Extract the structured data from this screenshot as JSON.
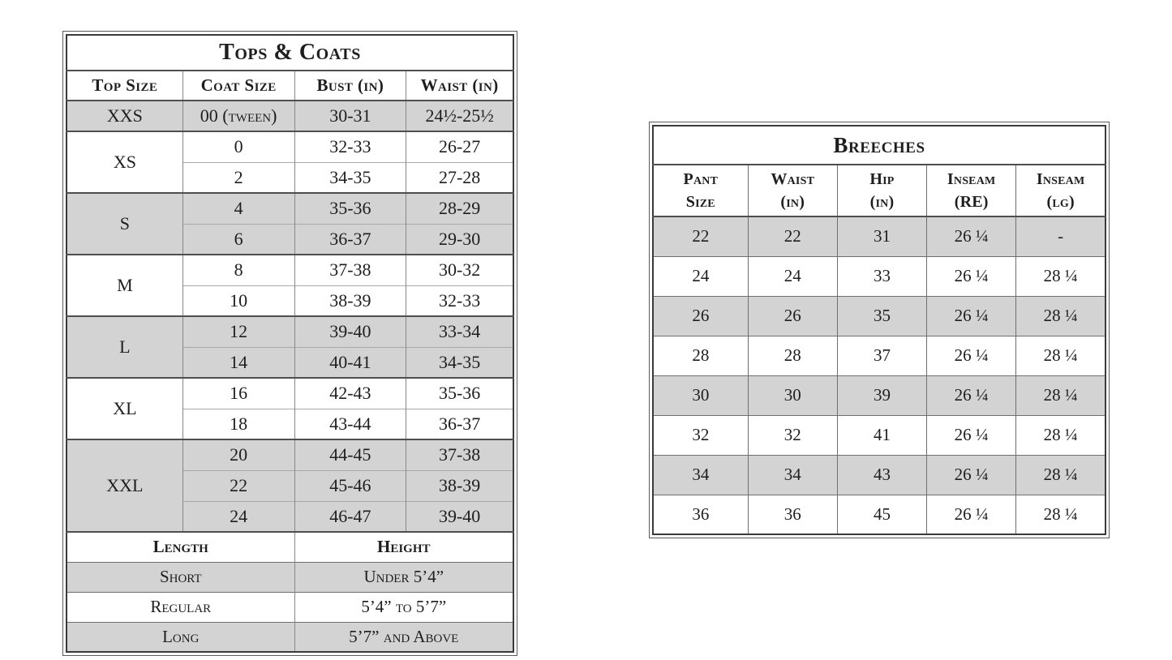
{
  "colors": {
    "shaded_row": "#d3d3d3",
    "frame_inner": "#3a3a3a",
    "line_dark": "#4e4e4e",
    "text": "#1e1e1e"
  },
  "tops_coats": {
    "title": "Tops & Coats",
    "headers": [
      "Top Size",
      "Coat Size",
      "Bust (in)",
      "Waist (in)"
    ],
    "groups": [
      {
        "size": "XXS",
        "shaded": true,
        "rows": [
          [
            "00 (tween)",
            "30-31",
            "24½-25½"
          ]
        ]
      },
      {
        "size": "XS",
        "shaded": false,
        "rows": [
          [
            "0",
            "32-33",
            "26-27"
          ],
          [
            "2",
            "34-35",
            "27-28"
          ]
        ]
      },
      {
        "size": "S",
        "shaded": true,
        "rows": [
          [
            "4",
            "35-36",
            "28-29"
          ],
          [
            "6",
            "36-37",
            "29-30"
          ]
        ]
      },
      {
        "size": "M",
        "shaded": false,
        "rows": [
          [
            "8",
            "37-38",
            "30-32"
          ],
          [
            "10",
            "38-39",
            "32-33"
          ]
        ]
      },
      {
        "size": "L",
        "shaded": true,
        "rows": [
          [
            "12",
            "39-40",
            "33-34"
          ],
          [
            "14",
            "40-41",
            "34-35"
          ]
        ]
      },
      {
        "size": "XL",
        "shaded": false,
        "rows": [
          [
            "16",
            "42-43",
            "35-36"
          ],
          [
            "18",
            "43-44",
            "36-37"
          ]
        ]
      },
      {
        "size": "XXL",
        "shaded": true,
        "rows": [
          [
            "20",
            "44-45",
            "37-38"
          ],
          [
            "22",
            "45-46",
            "38-39"
          ],
          [
            "24",
            "46-47",
            "39-40"
          ]
        ]
      }
    ],
    "length_section": {
      "headers": [
        "Length",
        "Height"
      ],
      "rows": [
        {
          "length": "Short",
          "height": "Under 5’4”",
          "shaded": true
        },
        {
          "length": "Regular",
          "height": "5’4” to 5’7”",
          "shaded": false
        },
        {
          "length": "Long",
          "height": "5’7” and Above",
          "shaded": true
        }
      ]
    }
  },
  "breeches": {
    "title": "Breeches",
    "headers": [
      [
        "Pant",
        "Size"
      ],
      [
        "Waist",
        "(in)"
      ],
      [
        "Hip",
        "(in)"
      ],
      [
        "Inseam",
        "(RE)"
      ],
      [
        "Inseam",
        "(lg)"
      ]
    ],
    "rows": [
      {
        "shaded": true,
        "cells": [
          "22",
          "22",
          "31",
          "26 ¼",
          "-"
        ]
      },
      {
        "shaded": false,
        "cells": [
          "24",
          "24",
          "33",
          "26 ¼",
          "28 ¼"
        ]
      },
      {
        "shaded": true,
        "cells": [
          "26",
          "26",
          "35",
          "26 ¼",
          "28 ¼"
        ]
      },
      {
        "shaded": false,
        "cells": [
          "28",
          "28",
          "37",
          "26 ¼",
          "28 ¼"
        ]
      },
      {
        "shaded": true,
        "cells": [
          "30",
          "30",
          "39",
          "26 ¼",
          "28 ¼"
        ]
      },
      {
        "shaded": false,
        "cells": [
          "32",
          "32",
          "41",
          "26 ¼",
          "28 ¼"
        ]
      },
      {
        "shaded": true,
        "cells": [
          "34",
          "34",
          "43",
          "26 ¼",
          "28 ¼"
        ]
      },
      {
        "shaded": false,
        "cells": [
          "36",
          "36",
          "45",
          "26 ¼",
          "28 ¼"
        ]
      }
    ]
  }
}
